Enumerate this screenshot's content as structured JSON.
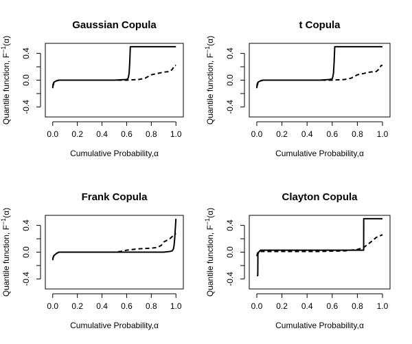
{
  "chart_data": [
    {
      "type": "line",
      "title": "Gaussian Copula",
      "xlabel": "Cumulative Probability,",
      "xlabel_symbol": "α",
      "ylabel": "Quantile function, F",
      "ylabel_sup": "−1",
      "ylabel_arg": "(α)",
      "xlim": [
        -0.06,
        1.06
      ],
      "ylim": [
        -0.55,
        0.55
      ],
      "x_ticks": [
        0.0,
        0.2,
        0.4,
        0.6,
        0.8,
        1.0
      ],
      "x_tick_labels": [
        "0.0",
        "0.2",
        "0.4",
        "0.6",
        "0.8",
        "1.0"
      ],
      "y_ticks": [
        -0.4,
        -0.2,
        0.0,
        0.2,
        0.4
      ],
      "y_tick_labels": [
        "-0.4",
        "",
        "0.0",
        "",
        "0.4"
      ],
      "grid": false,
      "series": [
        {
          "style": "solid",
          "x": [
            0.0,
            0.003,
            0.01,
            0.03,
            0.05,
            0.1,
            0.3,
            0.5,
            0.6,
            0.61,
            0.615,
            0.62,
            0.625,
            0.63,
            1.0
          ],
          "y": [
            -0.12,
            -0.06,
            -0.03,
            -0.01,
            0.0,
            0.0,
            0.0,
            0.0,
            0.01,
            0.02,
            0.05,
            0.1,
            0.25,
            0.5,
            0.5
          ]
        },
        {
          "style": "dashed",
          "x": [
            0.0,
            0.01,
            0.03,
            0.05,
            0.1,
            0.3,
            0.5,
            0.6,
            0.7,
            0.75,
            0.8,
            0.85,
            0.9,
            0.95,
            0.97,
            0.99,
            1.0
          ],
          "y": [
            -0.1,
            -0.04,
            -0.01,
            0.0,
            0.0,
            0.0,
            0.0,
            0.0,
            0.01,
            0.03,
            0.08,
            0.1,
            0.12,
            0.13,
            0.16,
            0.22,
            0.22
          ]
        }
      ]
    },
    {
      "type": "line",
      "title": "t Copula",
      "xlabel": "Cumulative Probability,",
      "xlabel_symbol": "α",
      "ylabel": "Quantile function, F",
      "ylabel_sup": "−1",
      "ylabel_arg": "(α)",
      "xlim": [
        -0.06,
        1.06
      ],
      "ylim": [
        -0.55,
        0.55
      ],
      "x_ticks": [
        0.0,
        0.2,
        0.4,
        0.6,
        0.8,
        1.0
      ],
      "x_tick_labels": [
        "0.0",
        "0.2",
        "0.4",
        "0.6",
        "0.8",
        "1.0"
      ],
      "y_ticks": [
        -0.4,
        -0.2,
        0.0,
        0.2,
        0.4
      ],
      "y_tick_labels": [
        "-0.4",
        "",
        "0.0",
        "",
        "0.4"
      ],
      "grid": false,
      "series": [
        {
          "style": "solid",
          "x": [
            0.0,
            0.003,
            0.01,
            0.03,
            0.05,
            0.1,
            0.3,
            0.5,
            0.58,
            0.6,
            0.605,
            0.61,
            0.615,
            0.62,
            1.0
          ],
          "y": [
            -0.12,
            -0.06,
            -0.03,
            -0.01,
            0.0,
            0.0,
            0.0,
            0.0,
            0.01,
            0.02,
            0.05,
            0.1,
            0.25,
            0.5,
            0.5
          ]
        },
        {
          "style": "dashed",
          "x": [
            0.0,
            0.01,
            0.03,
            0.05,
            0.1,
            0.3,
            0.5,
            0.6,
            0.7,
            0.75,
            0.8,
            0.85,
            0.9,
            0.95,
            0.97,
            0.99,
            1.0
          ],
          "y": [
            -0.1,
            -0.04,
            -0.01,
            0.0,
            0.0,
            0.0,
            0.0,
            0.0,
            0.01,
            0.03,
            0.08,
            0.1,
            0.12,
            0.13,
            0.16,
            0.22,
            0.22
          ]
        }
      ]
    },
    {
      "type": "line",
      "title": "Frank Copula",
      "xlabel": "Cumulative Probability,",
      "xlabel_symbol": "α",
      "ylabel": "Quantile function, F",
      "ylabel_sup": "−1",
      "ylabel_arg": "(α)",
      "xlim": [
        -0.06,
        1.06
      ],
      "ylim": [
        -0.55,
        0.55
      ],
      "x_ticks": [
        0.0,
        0.2,
        0.4,
        0.6,
        0.8,
        1.0
      ],
      "x_tick_labels": [
        "0.0",
        "0.2",
        "0.4",
        "0.6",
        "0.8",
        "1.0"
      ],
      "y_ticks": [
        -0.4,
        -0.2,
        0.0,
        0.2,
        0.4
      ],
      "y_tick_labels": [
        "-0.4",
        "",
        "0.0",
        "",
        "0.4"
      ],
      "grid": false,
      "series": [
        {
          "style": "solid",
          "x": [
            0.0,
            0.003,
            0.01,
            0.03,
            0.05,
            0.1,
            0.3,
            0.5,
            0.7,
            0.9,
            0.95,
            0.97,
            0.98,
            0.985,
            0.99,
            0.995,
            1.0
          ],
          "y": [
            -0.12,
            -0.08,
            -0.05,
            -0.02,
            0.0,
            0.0,
            0.0,
            0.0,
            0.0,
            0.0,
            0.01,
            0.02,
            0.05,
            0.1,
            0.2,
            0.35,
            0.5
          ]
        },
        {
          "style": "dashed",
          "x": [
            0.0,
            0.01,
            0.03,
            0.05,
            0.1,
            0.3,
            0.5,
            0.55,
            0.6,
            0.7,
            0.8,
            0.85,
            0.88,
            0.9,
            0.95,
            0.98,
            1.0
          ],
          "y": [
            -0.1,
            -0.05,
            -0.02,
            0.0,
            0.0,
            0.0,
            0.0,
            0.01,
            0.03,
            0.05,
            0.06,
            0.07,
            0.1,
            0.15,
            0.2,
            0.25,
            0.28
          ]
        }
      ]
    },
    {
      "type": "line",
      "title": "Clayton Copula",
      "xlabel": "Cumulative Probability,",
      "xlabel_symbol": "α",
      "ylabel": "Quantile function, F",
      "ylabel_sup": "−1",
      "ylabel_arg": "(α)",
      "xlim": [
        -0.06,
        1.06
      ],
      "ylim": [
        -0.55,
        0.55
      ],
      "x_ticks": [
        0.0,
        0.2,
        0.4,
        0.6,
        0.8,
        1.0
      ],
      "x_tick_labels": [
        "0.0",
        "0.2",
        "0.4",
        "0.6",
        "0.8",
        "1.0"
      ],
      "y_ticks": [
        -0.4,
        -0.2,
        0.0,
        0.2,
        0.4
      ],
      "y_tick_labels": [
        "-0.4",
        "",
        "0.0",
        "",
        "0.4"
      ],
      "grid": false,
      "series": [
        {
          "style": "solid",
          "x": [
            0.0,
            0.008,
            0.009,
            0.015,
            0.02,
            0.03,
            0.5,
            0.8,
            0.85,
            0.851,
            1.0
          ],
          "y": [
            -0.35,
            -0.35,
            -0.03,
            0.0,
            0.01,
            0.03,
            0.03,
            0.03,
            0.03,
            0.5,
            0.5
          ]
        },
        {
          "style": "dashed",
          "x": [
            0.0,
            0.005,
            0.01,
            0.02,
            0.03,
            0.5,
            0.7,
            0.8,
            0.85,
            0.9,
            0.95,
            1.0
          ],
          "y": [
            -0.06,
            -0.02,
            0.0,
            0.01,
            0.01,
            0.01,
            0.02,
            0.04,
            0.07,
            0.14,
            0.22,
            0.26
          ]
        }
      ]
    }
  ]
}
